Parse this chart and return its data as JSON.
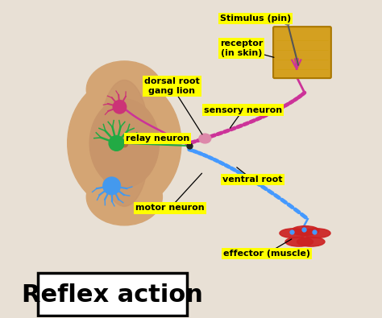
{
  "background_color": "#e8e0d5",
  "title_text": "Reflex action",
  "title_fontsize": 22,
  "label_bg": "#ffff00",
  "label_fontsize": 8,
  "labels": {
    "stimulus": "Stimulus (pin)",
    "receptor": "receptor\n(in skin)",
    "sensory_neuron": "sensory neuron",
    "dorsal_root": "dorsal root\ngang lion",
    "relay_neuron": "relay neuron",
    "ventral_root": "ventral root",
    "motor_neuron": "motor neuron",
    "effector": "effector (muscle)"
  },
  "spinal_cord_color": "#d4a574",
  "spinal_cord_inner": "#c8956a",
  "sensory_neuron_color": "#cc3399",
  "motor_neuron_color": "#4499ff",
  "relay_neuron_color": "#22aa44",
  "skin_color": "#d4a020",
  "muscle_color": "#cc2222"
}
